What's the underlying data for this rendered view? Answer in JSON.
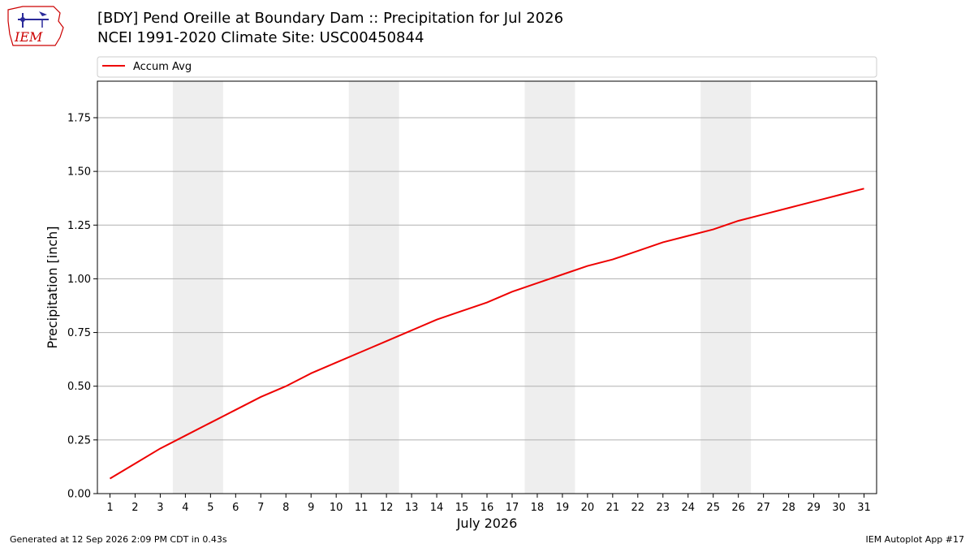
{
  "header": {
    "title_line1": "[BDY] Pend Oreille at Boundary Dam :: Precipitation for Jul 2026",
    "title_line2": "NCEI 1991-2020 Climate Site: USC00450844",
    "logo_text": "IEM"
  },
  "footer": {
    "left": "Generated at 12 Sep 2026 2:09 PM CDT in 0.43s",
    "right": "IEM Autoplot App #17"
  },
  "colors": {
    "line": "#ee0000",
    "weekend_band": "#eeeeee",
    "grid": "#b0b0b0",
    "logo": "#cc0000"
  },
  "chart_data": {
    "type": "line",
    "xlabel": "July 2026",
    "ylabel": "Precipitation [inch]",
    "x": [
      1,
      2,
      3,
      4,
      5,
      6,
      7,
      8,
      9,
      10,
      11,
      12,
      13,
      14,
      15,
      16,
      17,
      18,
      19,
      20,
      21,
      22,
      23,
      24,
      25,
      26,
      27,
      28,
      29,
      30,
      31
    ],
    "xlim": [
      0.5,
      31.5
    ],
    "ylim": [
      0,
      1.92
    ],
    "yticks": [
      0.0,
      0.25,
      0.5,
      0.75,
      1.0,
      1.25,
      1.5,
      1.75
    ],
    "ytick_labels": [
      "0.00",
      "0.25",
      "0.50",
      "0.75",
      "1.00",
      "1.25",
      "1.50",
      "1.75"
    ],
    "xtick_labels": [
      "1",
      "2",
      "3",
      "4",
      "5",
      "6",
      "7",
      "8",
      "9",
      "10",
      "11",
      "12",
      "13",
      "14",
      "15",
      "16",
      "17",
      "18",
      "19",
      "20",
      "21",
      "22",
      "23",
      "24",
      "25",
      "26",
      "27",
      "28",
      "29",
      "30",
      "31"
    ],
    "grid": "horizontal",
    "legend_position": "top",
    "series": [
      {
        "name": "Accum Avg",
        "values": [
          0.07,
          0.14,
          0.21,
          0.27,
          0.33,
          0.39,
          0.45,
          0.5,
          0.56,
          0.61,
          0.66,
          0.71,
          0.76,
          0.81,
          0.85,
          0.89,
          0.94,
          0.98,
          1.02,
          1.06,
          1.09,
          1.13,
          1.17,
          1.2,
          1.23,
          1.27,
          1.3,
          1.33,
          1.36,
          1.39,
          1.42
        ]
      }
    ],
    "weekend_bands": [
      [
        3.5,
        5.5
      ],
      [
        10.5,
        12.5
      ],
      [
        17.5,
        19.5
      ],
      [
        24.5,
        26.5
      ]
    ]
  }
}
